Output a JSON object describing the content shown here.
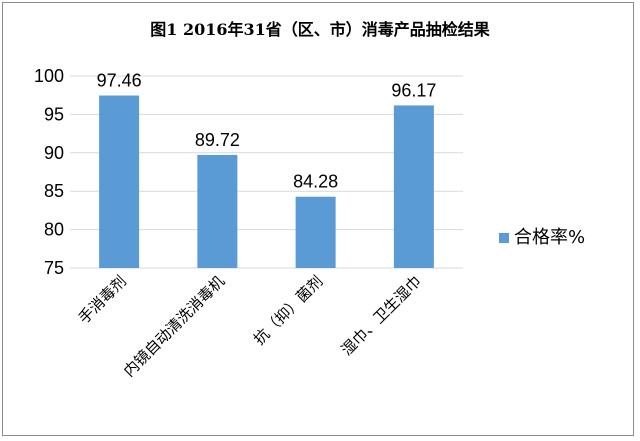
{
  "chart_data": {
    "type": "bar",
    "title": "图1  2016年31省（区、市）消毒产品抽检结果",
    "categories": [
      "手消毒剂",
      "内镜自动清洗消毒机",
      "抗（抑）菌剂",
      "湿巾、卫生湿巾"
    ],
    "series": [
      {
        "name": "合格率%",
        "values": [
          97.46,
          89.72,
          84.28,
          96.17
        ],
        "color": "#5B9BD5"
      }
    ],
    "data_labels": [
      "97.46",
      "89.72",
      "84.28",
      "96.17"
    ],
    "ylim": [
      75,
      100
    ],
    "yticks": [
      75,
      80,
      85,
      90,
      95,
      100
    ],
    "ytick_labels": [
      "75",
      "80",
      "85",
      "90",
      "95",
      "100"
    ],
    "grid": true,
    "legend": "right",
    "xlabel": "",
    "ylabel": ""
  }
}
